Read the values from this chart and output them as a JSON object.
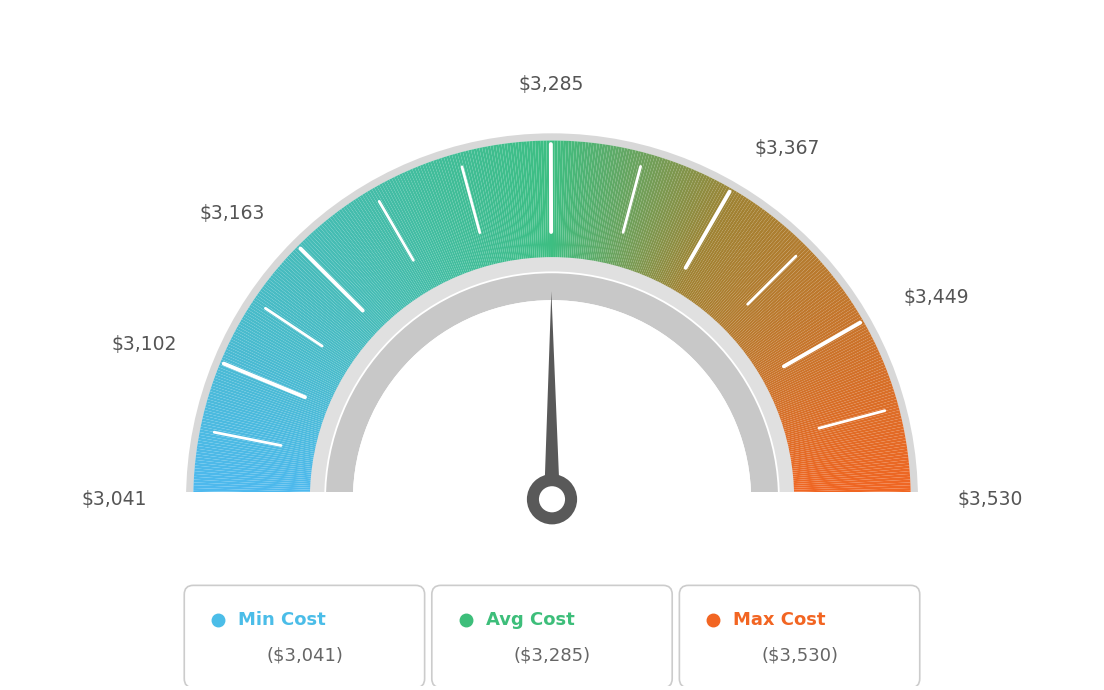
{
  "min_val": 3041,
  "max_val": 3530,
  "avg_val": 3285,
  "label_values": [
    3041,
    3102,
    3163,
    3285,
    3367,
    3449,
    3530
  ],
  "label_texts": [
    "$3,041",
    "$3,102",
    "$3,163",
    "$3,285",
    "$3,367",
    "$3,449",
    "$3,530"
  ],
  "background_color": "#ffffff",
  "legend_colors": [
    "#4BBDE8",
    "#3DBE7A",
    "#F26522"
  ],
  "legend_labels": [
    "Min Cost",
    "Avg Cost",
    "Max Cost"
  ],
  "legend_values": [
    "($3,041)",
    "($3,285)",
    "($3,530)"
  ],
  "needle_color": "#595959",
  "gauge_outer_r": 1.0,
  "gauge_inner_r": 0.67,
  "gray_outer_r": 0.63,
  "gray_inner_r": 0.555,
  "color_stops": [
    [
      0.0,
      [
        78,
        178,
        232
      ]
    ],
    [
      0.15,
      [
        78,
        178,
        232
      ]
    ],
    [
      0.45,
      [
        61,
        190,
        122
      ]
    ],
    [
      0.5,
      [
        61,
        190,
        122
      ]
    ],
    [
      0.65,
      [
        190,
        140,
        60
      ]
    ],
    [
      1.0,
      [
        242,
        101,
        34
      ]
    ]
  ]
}
